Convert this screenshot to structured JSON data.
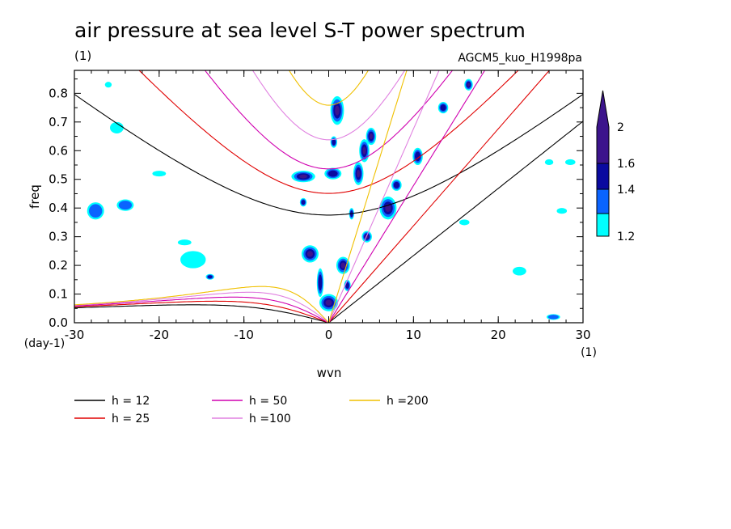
{
  "chart_data": {
    "type": "contour",
    "title": "air pressure at sea level S-T power spectrum",
    "title_units": "(1)",
    "subtitle": "AGCM5_kuo_H1998pa",
    "xlabel": "wvn",
    "xunits": "(1)",
    "ylabel": "freq",
    "yunits": "(day-1)",
    "xlim": [
      -30,
      30
    ],
    "ylim": [
      0,
      0.88
    ],
    "x_ticks": [
      -30,
      -20,
      -10,
      0,
      10,
      20,
      30
    ],
    "x_tick_labels": [
      "-30",
      "-20",
      "-10",
      "0",
      "10",
      "20",
      "30"
    ],
    "y_ticks": [
      0,
      0.1,
      0.2,
      0.3,
      0.4,
      0.5,
      0.6,
      0.7,
      0.8
    ],
    "y_tick_labels": [
      "0.0",
      "0.1",
      "0.2",
      "0.3",
      "0.4",
      "0.5",
      "0.6",
      "0.7",
      "0.8"
    ],
    "colorbar": {
      "levels": [
        1.2,
        1.4,
        1.6,
        2
      ],
      "level_labels": [
        "1.2",
        "1.4",
        "1.6",
        "2"
      ],
      "colors": [
        "#00ffff",
        "#0a64ff",
        "#0a0aa0",
        "#3c148c"
      ]
    },
    "dispersion_curves": [
      {
        "name": "h = 12",
        "h": 12,
        "color": "#000000"
      },
      {
        "name": "h = 25",
        "h": 25,
        "color": "#e00000"
      },
      {
        "name": "h = 50",
        "h": 50,
        "color": "#d000b0"
      },
      {
        "name": "h =100",
        "h": 100,
        "color": "#e080e0"
      },
      {
        "name": "h =200",
        "h": 200,
        "color": "#f0c000"
      }
    ],
    "power_blobs": [
      {
        "x": 1.0,
        "y": 0.74,
        "rx": 0.8,
        "ry": 0.05,
        "level": 3
      },
      {
        "x": 0.6,
        "y": 0.63,
        "rx": 0.4,
        "ry": 0.02,
        "level": 2
      },
      {
        "x": 0.0,
        "y": 0.07,
        "rx": 1.1,
        "ry": 0.03,
        "level": 3
      },
      {
        "x": -2.2,
        "y": 0.24,
        "rx": 1.0,
        "ry": 0.03,
        "level": 3
      },
      {
        "x": -1.0,
        "y": 0.14,
        "rx": 0.4,
        "ry": 0.05,
        "level": 2
      },
      {
        "x": 1.7,
        "y": 0.2,
        "rx": 0.8,
        "ry": 0.03,
        "level": 3
      },
      {
        "x": 2.2,
        "y": 0.13,
        "rx": 0.4,
        "ry": 0.02,
        "level": 2
      },
      {
        "x": -3.0,
        "y": 0.51,
        "rx": 1.4,
        "ry": 0.02,
        "level": 3
      },
      {
        "x": 0.5,
        "y": 0.52,
        "rx": 1.0,
        "ry": 0.02,
        "level": 2
      },
      {
        "x": 2.7,
        "y": 0.38,
        "rx": 0.3,
        "ry": 0.02,
        "level": 2
      },
      {
        "x": 3.5,
        "y": 0.52,
        "rx": 0.6,
        "ry": 0.04,
        "level": 3
      },
      {
        "x": 4.2,
        "y": 0.6,
        "rx": 0.6,
        "ry": 0.04,
        "level": 3
      },
      {
        "x": 5.0,
        "y": 0.65,
        "rx": 0.6,
        "ry": 0.03,
        "level": 3
      },
      {
        "x": 4.5,
        "y": 0.3,
        "rx": 0.6,
        "ry": 0.02,
        "level": 3
      },
      {
        "x": 7.0,
        "y": 0.4,
        "rx": 1.0,
        "ry": 0.04,
        "level": 3
      },
      {
        "x": 8.0,
        "y": 0.48,
        "rx": 0.6,
        "ry": 0.02,
        "level": 2
      },
      {
        "x": 10.5,
        "y": 0.58,
        "rx": 0.6,
        "ry": 0.03,
        "level": 2
      },
      {
        "x": 13.5,
        "y": 0.75,
        "rx": 0.6,
        "ry": 0.02,
        "level": 2
      },
      {
        "x": 16.5,
        "y": 0.83,
        "rx": 0.5,
        "ry": 0.02,
        "level": 3
      },
      {
        "x": -3.0,
        "y": 0.42,
        "rx": 0.4,
        "ry": 0.015,
        "level": 2
      },
      {
        "x": -27.5,
        "y": 0.39,
        "rx": 1.0,
        "ry": 0.03,
        "level": 1
      },
      {
        "x": -24.0,
        "y": 0.41,
        "rx": 1.0,
        "ry": 0.02,
        "level": 1
      },
      {
        "x": -25.0,
        "y": 0.68,
        "rx": 0.8,
        "ry": 0.02,
        "level": 0
      },
      {
        "x": -16.0,
        "y": 0.22,
        "rx": 1.5,
        "ry": 0.03,
        "level": 0
      },
      {
        "x": -17.0,
        "y": 0.28,
        "rx": 0.8,
        "ry": 0.01,
        "level": 0
      },
      {
        "x": -14.0,
        "y": 0.16,
        "rx": 0.5,
        "ry": 0.01,
        "level": 2
      },
      {
        "x": -20.0,
        "y": 0.52,
        "rx": 0.8,
        "ry": 0.01,
        "level": 0
      },
      {
        "x": -26.0,
        "y": 0.83,
        "rx": 0.4,
        "ry": 0.01,
        "level": 0
      },
      {
        "x": 26.5,
        "y": 0.02,
        "rx": 0.8,
        "ry": 0.01,
        "level": 1
      },
      {
        "x": 22.5,
        "y": 0.18,
        "rx": 0.8,
        "ry": 0.015,
        "level": 0
      },
      {
        "x": 27.5,
        "y": 0.39,
        "rx": 0.6,
        "ry": 0.01,
        "level": 0
      },
      {
        "x": 28.5,
        "y": 0.56,
        "rx": 0.6,
        "ry": 0.01,
        "level": 0
      },
      {
        "x": 16.0,
        "y": 0.35,
        "rx": 0.6,
        "ry": 0.01,
        "level": 0
      },
      {
        "x": 26.0,
        "y": 0.56,
        "rx": 0.5,
        "ry": 0.01,
        "level": 0
      }
    ]
  }
}
